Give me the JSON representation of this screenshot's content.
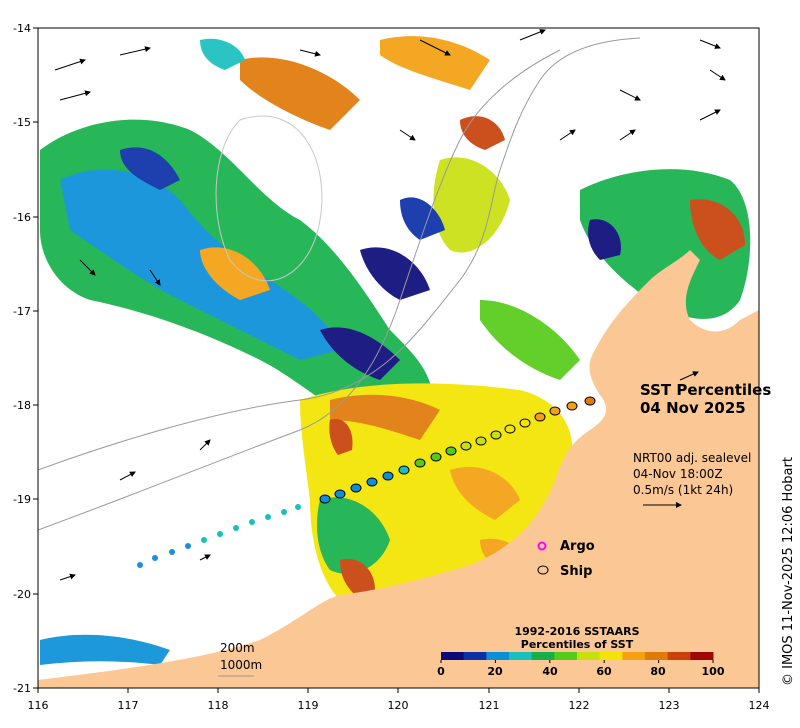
{
  "map": {
    "extent": {
      "lon": [
        116,
        124
      ],
      "lat": [
        -21,
        -14
      ]
    },
    "x_ticks": [
      "116",
      "117",
      "118",
      "119",
      "120",
      "121",
      "122",
      "123",
      "124"
    ],
    "y_ticks": [
      "-14",
      "-15",
      "-16",
      "-17",
      "-18",
      "-19",
      "-20",
      "-21"
    ],
    "colors": {
      "land": "#fbc794",
      "ocean": "#ffffff",
      "isobath": "#9a9a9a",
      "argo": "#ff00ff"
    }
  },
  "title": {
    "line1": "SST Percentiles",
    "line2": "04 Nov 2025"
  },
  "current": {
    "line1": "NRT00 adj. sealevel",
    "line2": "04-Nov 18:00Z",
    "line3": "0.5m/s (1kt 24h)"
  },
  "legend": {
    "argo": "Argo",
    "ship": "Ship"
  },
  "isobaths": {
    "line1": "200m",
    "line2": "1000m"
  },
  "colorbar": {
    "title1": "1992-2016 SSTAARS",
    "title2": "Percentiles of SST",
    "ticks": [
      "0",
      "20",
      "40",
      "60",
      "80",
      "100"
    ],
    "colors": [
      "#0a0a7a",
      "#0b2fa8",
      "#0a8fd8",
      "#18c0c0",
      "#15b04a",
      "#55cc18",
      "#c8e010",
      "#f4e400",
      "#f4a010",
      "#e07a08",
      "#c8420a",
      "#a00808"
    ]
  },
  "credit": "© IMOS 11-Nov-2025 12:06 Hobart"
}
